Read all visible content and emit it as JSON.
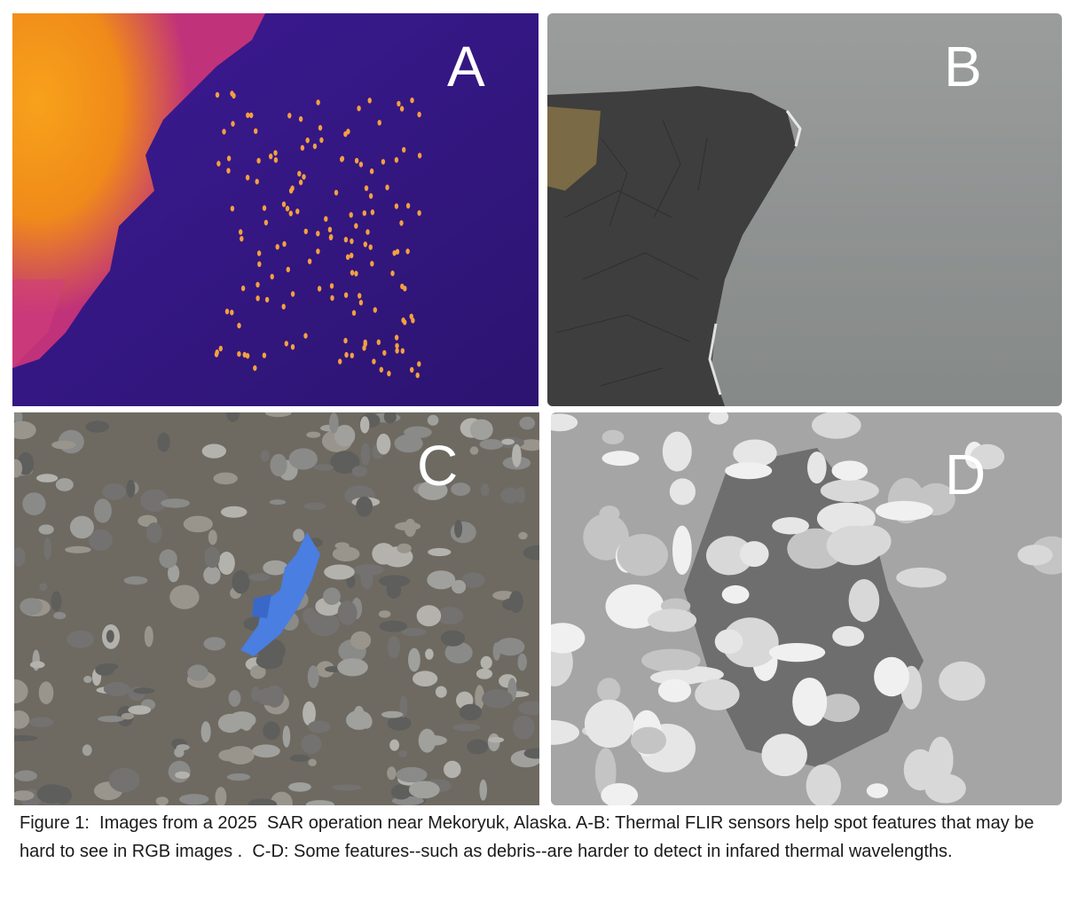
{
  "panels": {
    "a": {
      "label": "A",
      "description_icon": "thermal-seal-colony-image"
    },
    "b": {
      "label": "B",
      "description_icon": "rgb-rocky-shoreline-image"
    },
    "c": {
      "label": "C",
      "description_icon": "rgb-debris-on-gravel-image"
    },
    "d": {
      "label": "D",
      "description_icon": "thermal-debris-on-gravel-image"
    }
  },
  "caption": "Figure 1:  Images from a 2025  SAR operation near Mekoryuk, Alaska. A-B: Thermal FLIR sensors help spot features that may be hard to see in RGB images .  C-D: Some features--such as debris--are harder to detect in infared thermal wavelengths.",
  "colors": {
    "thermal_background": "#3a1a8a",
    "thermal_hot": "#f5a623",
    "water_gray": "#8c8f8e",
    "rock_dark": "#3d3d3d",
    "debris_blue": "#4a7ee0"
  }
}
